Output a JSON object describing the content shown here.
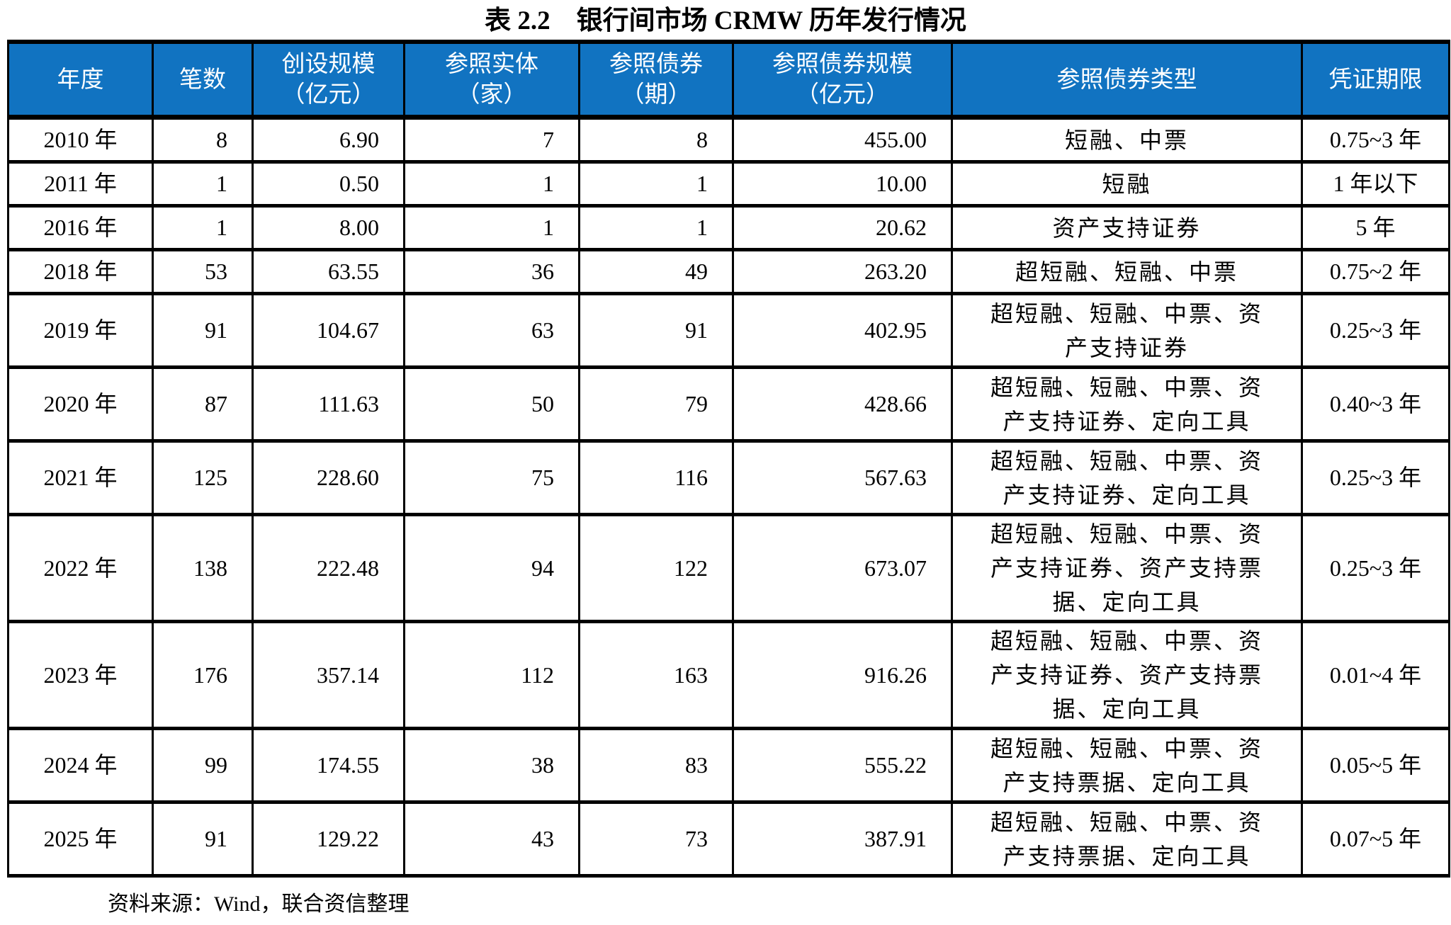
{
  "title": "表 2.2　银行间市场 CRMW 历年发行情况",
  "source_note": "资料来源：Wind，联合资信整理",
  "colors": {
    "header_bg": "#1173C1",
    "header_text": "#FFFFFF",
    "border": "#000000"
  },
  "table": {
    "columns": [
      {
        "key": "year",
        "label": "年度"
      },
      {
        "key": "count",
        "label": "笔数"
      },
      {
        "key": "scale",
        "label": "创设规模\n（亿元）"
      },
      {
        "key": "entities",
        "label": "参照实体\n（家）"
      },
      {
        "key": "bonds",
        "label": "参照债券\n（期）"
      },
      {
        "key": "bond_scale",
        "label": "参照债券规模\n（亿元）"
      },
      {
        "key": "bond_types",
        "label": "参照债券类型"
      },
      {
        "key": "term",
        "label": "凭证期限"
      }
    ],
    "rows": [
      {
        "year": "2010 年",
        "count": "8",
        "scale": "6.90",
        "entities": "7",
        "bonds": "8",
        "bond_scale": "455.00",
        "bond_types": "短融、中票",
        "term": "0.75~3 年"
      },
      {
        "year": "2011 年",
        "count": "1",
        "scale": "0.50",
        "entities": "1",
        "bonds": "1",
        "bond_scale": "10.00",
        "bond_types": "短融",
        "term": "1 年以下"
      },
      {
        "year": "2016 年",
        "count": "1",
        "scale": "8.00",
        "entities": "1",
        "bonds": "1",
        "bond_scale": "20.62",
        "bond_types": "资产支持证券",
        "term": "5 年"
      },
      {
        "year": "2018 年",
        "count": "53",
        "scale": "63.55",
        "entities": "36",
        "bonds": "49",
        "bond_scale": "263.20",
        "bond_types": "超短融、短融、中票",
        "term": "0.75~2 年"
      },
      {
        "year": "2019 年",
        "count": "91",
        "scale": "104.67",
        "entities": "63",
        "bonds": "91",
        "bond_scale": "402.95",
        "bond_types": "超短融、短融、中票、资\n产支持证券",
        "term": "0.25~3 年"
      },
      {
        "year": "2020 年",
        "count": "87",
        "scale": "111.63",
        "entities": "50",
        "bonds": "79",
        "bond_scale": "428.66",
        "bond_types": "超短融、短融、中票、资\n产支持证券、定向工具",
        "term": "0.40~3 年"
      },
      {
        "year": "2021 年",
        "count": "125",
        "scale": "228.60",
        "entities": "75",
        "bonds": "116",
        "bond_scale": "567.63",
        "bond_types": "超短融、短融、中票、资\n产支持证券、定向工具",
        "term": "0.25~3 年"
      },
      {
        "year": "2022 年",
        "count": "138",
        "scale": "222.48",
        "entities": "94",
        "bonds": "122",
        "bond_scale": "673.07",
        "bond_types": "超短融、短融、中票、资\n产支持证券、资产支持票\n据、定向工具",
        "term": "0.25~3 年"
      },
      {
        "year": "2023 年",
        "count": "176",
        "scale": "357.14",
        "entities": "112",
        "bonds": "163",
        "bond_scale": "916.26",
        "bond_types": "超短融、短融、中票、资\n产支持证券、资产支持票\n据、定向工具",
        "term": "0.01~4 年"
      },
      {
        "year": "2024 年",
        "count": "99",
        "scale": "174.55",
        "entities": "38",
        "bonds": "83",
        "bond_scale": "555.22",
        "bond_types": "超短融、短融、中票、资\n产支持票据、定向工具",
        "term": "0.05~5 年"
      },
      {
        "year": "2025 年",
        "count": "91",
        "scale": "129.22",
        "entities": "43",
        "bonds": "73",
        "bond_scale": "387.91",
        "bond_types": "超短融、短融、中票、资\n产支持票据、定向工具",
        "term": "0.07~5 年"
      }
    ]
  }
}
